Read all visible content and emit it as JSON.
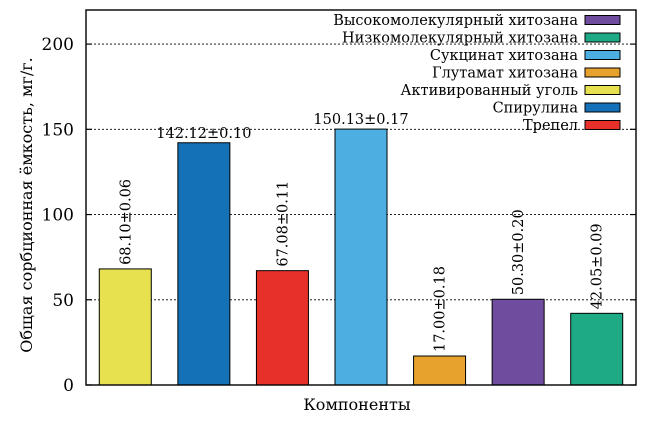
{
  "chart_data": {
    "type": "bar",
    "title": "",
    "xlabel": "Компоненты",
    "ylabel": "Общая сорбционная ёмкость, мг/г.",
    "ylim": [
      0,
      220
    ],
    "yticks": [
      0,
      50,
      100,
      150,
      200
    ],
    "grid": "horizontal-dashed",
    "legend_position": "top-right",
    "series": [
      {
        "name": "Активированный уголь",
        "value": 68.1,
        "label": "68.10±0.06",
        "color": "#e8e14f"
      },
      {
        "name": "Спирулина",
        "value": 142.12,
        "label": "142.12±0.10",
        "color": "#1571b7"
      },
      {
        "name": "Трепел",
        "value": 67.08,
        "label": "67.08±0.11",
        "color": "#e8302a"
      },
      {
        "name": "Сукцинат хитозана",
        "value": 150.13,
        "label": "150.13±0.17",
        "color": "#4daee2"
      },
      {
        "name": "Глутамат хитозана",
        "value": 17.0,
        "label": "17.00±0.18",
        "color": "#e6a22c"
      },
      {
        "name": "Высокомолекулярный хитозана",
        "value": 50.3,
        "label": "50.30±0.20",
        "color": "#6f4c9e"
      },
      {
        "name": "Низкомолекулярный хитозана",
        "value": 42.05,
        "label": "42.05±0.09",
        "color": "#1faa86"
      }
    ],
    "label_orientation": [
      "vertical",
      "horizontal",
      "vertical",
      "horizontal",
      "vertical",
      "vertical",
      "vertical"
    ],
    "legend_order": [
      "Высокомолекулярный хитозана",
      "Низкомолекулярный хитозана",
      "Сукцинат хитозана",
      "Глутамат хитозана",
      "Активированный уголь",
      "Спирулина",
      "Трепел"
    ]
  }
}
